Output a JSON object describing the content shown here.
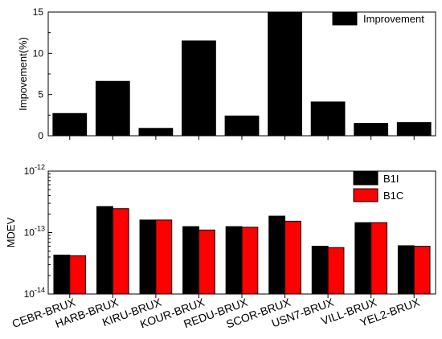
{
  "chart_data": [
    {
      "type": "bar",
      "categories": [
        "CEBR-BRUX",
        "HARB-BRUX",
        "KIRU-BRUX",
        "KOUR-BRUX",
        "REDU-BRUX",
        "SCOR-BRUX",
        "USN7-BRUX",
        "VILL-BRUX",
        "YEL2-BRUX"
      ],
      "series": [
        {
          "name": "Improvement",
          "values": [
            2.7,
            6.6,
            0.9,
            11.5,
            2.4,
            15.0,
            4.1,
            1.5,
            1.6
          ],
          "color": "#000000"
        }
      ],
      "ylabel": "Impovement(%)",
      "ylim": [
        0,
        15
      ],
      "yticks": [
        "0",
        "5",
        "10",
        "15"
      ],
      "yticks_values": [
        0,
        5,
        10,
        15
      ],
      "legend": "top-right",
      "grid": false
    },
    {
      "type": "bar",
      "categories": [
        "CEBR-BRUX",
        "HARB-BRUX",
        "KIRU-BRUX",
        "KOUR-BRUX",
        "REDU-BRUX",
        "SCOR-BRUX",
        "USN7-BRUX",
        "VILL-BRUX",
        "YEL2-BRUX"
      ],
      "series": [
        {
          "name": "B1I",
          "values": [
            4.3e-14,
            2.65e-13,
            1.6e-13,
            1.25e-13,
            1.25e-13,
            1.85e-13,
            6e-14,
            1.45e-13,
            6.1e-14
          ],
          "color": "#000000"
        },
        {
          "name": "B1C",
          "values": [
            4.2e-14,
            2.45e-13,
            1.6e-13,
            1.1e-13,
            1.22e-13,
            1.53e-13,
            5.7e-14,
            1.45e-13,
            6e-14
          ],
          "color": "#ff0000"
        }
      ],
      "ylabel": "MDEV",
      "ylim": [
        1e-14,
        1e-12
      ],
      "yscale": "log",
      "yticks": [
        {
          "base": "10",
          "exp": "-14",
          "value": 1e-14
        },
        {
          "base": "10",
          "exp": "-13",
          "value": 1e-13
        },
        {
          "base": "10",
          "exp": "-12",
          "value": 1e-12
        }
      ],
      "legend": "top-right",
      "grid": false
    }
  ]
}
